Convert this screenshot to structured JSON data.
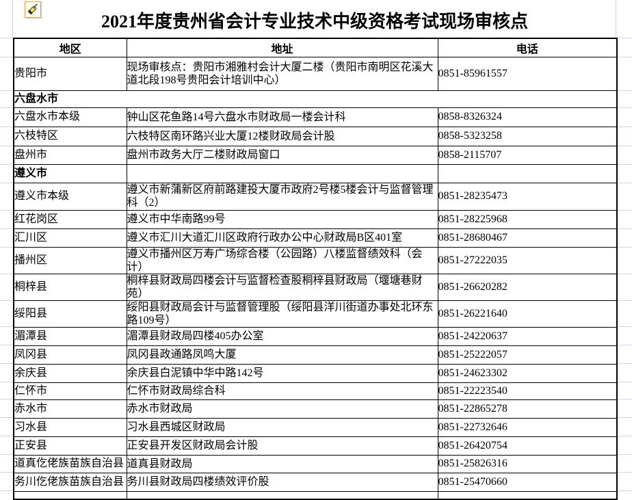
{
  "page": {
    "background": "#ffffff",
    "gridline_color": "#ccd7e6",
    "table_border_color": "#000000",
    "text_color": "#000000",
    "icon_border_color": "#e3a042"
  },
  "icons": {
    "format_painter": "format-painter-brush-icon"
  },
  "title": "2021年度贵州省会计专业技术中级资格考试现场审核点",
  "table": {
    "headers": [
      "地区",
      "地址",
      "电话"
    ],
    "rows": [
      {
        "type": "data",
        "region": "贵阳市",
        "address": "现场审核点：贵阳市湘雅村会计大厦二楼（贵阳市南明区花溪大道北段198号贵阳会计培训中心）",
        "phone": "0851-85961557",
        "h": 49
      },
      {
        "type": "section_merged",
        "region": "六盘水市",
        "address": "",
        "phone": "",
        "h": 25
      },
      {
        "type": "data",
        "region": "六盘水市本级",
        "address": "钟山区花鱼路14号六盘水市财政局一楼会计科",
        "phone": "0858-8326324",
        "h": 28
      },
      {
        "type": "data",
        "region": "六枝特区",
        "address": "六枝特区南环路兴业大厦12楼财政局会计股",
        "phone": "0858-5323258",
        "h": 28
      },
      {
        "type": "data",
        "region": "盘州市",
        "address": "盘州市政务大厅二楼财政局窗口",
        "phone": "0858-2115707",
        "h": 27
      },
      {
        "type": "section_cells",
        "region": "遵义市",
        "address": "",
        "phone": "",
        "h": 27
      },
      {
        "type": "data",
        "region": "遵义市本级",
        "address": "遵义市新蒲新区府前路建投大厦市政府2号楼5楼会计与监督管理科（2）",
        "phone": "0851-28235473",
        "h": 40
      },
      {
        "type": "data",
        "region": "红花岗区",
        "address": "遵义市中华南路99号",
        "phone": "0851-28225968",
        "h": 27
      },
      {
        "type": "data",
        "region": "汇川区",
        "address": "遵义市汇川大道汇川区政府行政办公中心财政局B区401室",
        "phone": "0851-28680467",
        "h": 27
      },
      {
        "type": "data",
        "region": "播州区",
        "address": "遵义市播州区万寿广场综合楼（公园路）八楼监督绩效科（会计）",
        "phone": "0851-27222035",
        "h": 39
      },
      {
        "type": "data",
        "region": "桐梓县",
        "address": "桐梓县财政局四楼会计与监督检查股桐梓县财政局（堰塘巷财苑）",
        "phone": "0851-26620282",
        "h": 39
      },
      {
        "type": "data",
        "region": "绥阳县",
        "address": "绥阳县财政局会计与监督管理股（绥阳县洋川街道办事处北环东路109号）",
        "phone": "0851-26221640",
        "h": 38
      },
      {
        "type": "data",
        "region": "湄潭县",
        "address": "湄潭县财政局四楼405办公室",
        "phone": "0851-24220637",
        "h": 27
      },
      {
        "type": "data",
        "region": "凤冈县",
        "address": "凤冈县政通路凤鸣大厦",
        "phone": "0851-25222057",
        "h": 27
      },
      {
        "type": "data",
        "region": "余庆县",
        "address": "余庆县白泥镇中华中路142号",
        "phone": "0851-24623302",
        "h": 27
      },
      {
        "type": "data",
        "region": "仁怀市",
        "address": "仁怀市财政局综合科",
        "phone": "0851-22223540",
        "h": 25
      },
      {
        "type": "data",
        "region": "赤水市",
        "address": "赤水市财政局",
        "phone": "0851-22865278",
        "h": 27
      },
      {
        "type": "data",
        "region": "习水县",
        "address": "习水县西城区财政局",
        "phone": "0851-22732646",
        "h": 27
      },
      {
        "type": "data",
        "region": "正安县",
        "address": "正安县开发区财政局会计股",
        "phone": "0851-26420754",
        "h": 27
      },
      {
        "type": "data",
        "region": "道真仡佬族苗族自治县",
        "address": "道真县财政局",
        "phone": "0851-25826316",
        "h": 26
      },
      {
        "type": "data",
        "region": "务川仡佬族苗族自治县",
        "address": "务川县财政局四楼绩效评价股",
        "phone": "0851-25470660",
        "h": 27
      }
    ]
  }
}
